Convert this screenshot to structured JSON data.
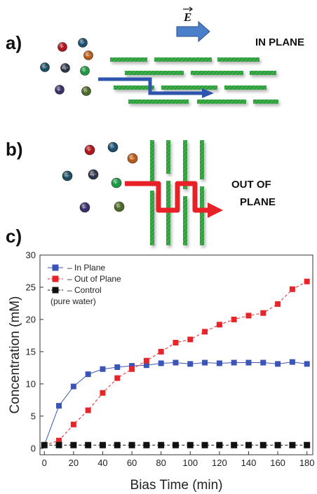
{
  "panel_a": {
    "label": "a)",
    "field_symbol": "E",
    "orientation_label": "IN PLANE",
    "ions": [
      {
        "symbol": "Li⁺",
        "color": "#1d4f6e"
      },
      {
        "symbol": "K⁺",
        "color": "#b0161c"
      },
      {
        "symbol": "Na⁺",
        "color": "#b85a16"
      },
      {
        "symbol": "Cs⁺",
        "color": "#1a4e60"
      },
      {
        "symbol": "Mg²⁺",
        "color": "#2c3548"
      },
      {
        "symbol": "F⁻",
        "color": "#1e9a44"
      },
      {
        "symbol": "Br⁻",
        "color": "#3a2f6a"
      },
      {
        "symbol": "Cl⁻",
        "color": "#4a6a25"
      }
    ]
  },
  "panel_b": {
    "label": "b)",
    "orientation_label_line1": "OUT OF",
    "orientation_label_line2": "PLANE",
    "ions": [
      {
        "symbol": "K⁺",
        "color": "#b0161c"
      },
      {
        "symbol": "Li⁺",
        "color": "#1d4f6e"
      },
      {
        "symbol": "Na⁺",
        "color": "#b85a16"
      },
      {
        "symbol": "Cs⁺",
        "color": "#1a4e60"
      },
      {
        "symbol": "Mg²⁺",
        "color": "#2c3548"
      },
      {
        "symbol": "F⁻",
        "color": "#1e9a44"
      },
      {
        "symbol": "Br⁻",
        "color": "#3a2f6a"
      },
      {
        "symbol": "Cl⁻",
        "color": "#4a6a25"
      }
    ]
  },
  "panel_c": {
    "label": "c)",
    "chart_data": {
      "type": "line",
      "title": "",
      "xlabel": "Bias Time (min)",
      "ylabel": "Concentration (mM)",
      "xlim": [
        -3,
        184
      ],
      "ylim": [
        -1,
        30
      ],
      "xticks": [
        0,
        20,
        40,
        60,
        80,
        100,
        120,
        140,
        160,
        180
      ],
      "yticks": [
        0,
        5,
        10,
        15,
        20,
        25,
        30
      ],
      "legend_position": "top-left",
      "legend_note": "(pure water)",
      "series": [
        {
          "name": "In Plane",
          "color": "#3a55b5",
          "line_style": "solid",
          "marker": "square",
          "x": [
            0,
            10,
            20,
            30,
            40,
            50,
            60,
            70,
            80,
            90,
            100,
            110,
            120,
            130,
            140,
            150,
            160,
            170,
            180
          ],
          "y": [
            0.5,
            6.6,
            9.6,
            11.5,
            12.3,
            12.6,
            12.8,
            12.9,
            13.2,
            13.3,
            13.1,
            13.3,
            13.2,
            13.3,
            13.3,
            13.3,
            13.1,
            13.4,
            13.1
          ]
        },
        {
          "name": "Out of Plane",
          "color": "#e8242b",
          "line_style": "dashed",
          "marker": "square",
          "x": [
            0,
            10,
            20,
            30,
            40,
            50,
            60,
            70,
            80,
            90,
            100,
            110,
            120,
            130,
            140,
            150,
            160,
            170,
            180
          ],
          "y": [
            0.5,
            1.2,
            3.7,
            5.9,
            8.6,
            10.9,
            12.3,
            13.6,
            15.0,
            16.4,
            16.9,
            18.1,
            19.2,
            20.0,
            20.6,
            21.0,
            22.4,
            24.7,
            25.9
          ]
        },
        {
          "name": "Control",
          "color": "#111111",
          "line_style": "dashed",
          "marker": "square",
          "x": [
            0,
            10,
            20,
            30,
            40,
            50,
            60,
            70,
            80,
            90,
            100,
            110,
            120,
            130,
            140,
            150,
            160,
            170,
            180
          ],
          "y": [
            0.5,
            0.5,
            0.5,
            0.5,
            0.5,
            0.5,
            0.5,
            0.5,
            0.5,
            0.5,
            0.5,
            0.5,
            0.5,
            0.5,
            0.5,
            0.5,
            0.5,
            0.5,
            0.5
          ]
        }
      ]
    }
  },
  "colors": {
    "membrane_green": "#2c9b3a",
    "in_plane_arrow": "#2d55ae",
    "out_of_plane_arrow": "#e82027",
    "field_arrow": "#4b7fc9"
  }
}
